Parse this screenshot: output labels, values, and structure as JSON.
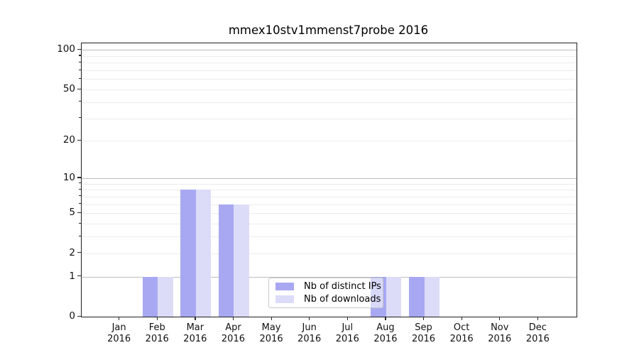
{
  "title": "mmex10stv1mmenst7probe 2016",
  "colors": {
    "distinct_ips": "#a8a8f2",
    "downloads": "#dcdcf9",
    "major_grid": "#bdbdbd",
    "minor_grid": "#ececec",
    "spine": "#1f1f1f"
  },
  "chart_data": {
    "type": "bar",
    "title": "mmex10stv1mmenst7probe 2016",
    "year": "2016",
    "months": [
      "Jan",
      "Feb",
      "Mar",
      "Apr",
      "May",
      "Jun",
      "Jul",
      "Aug",
      "Sep",
      "Oct",
      "Nov",
      "Dec"
    ],
    "series": [
      {
        "name": "Nb of distinct IPs",
        "key": "distinct-ips",
        "color": "#a8a8f2",
        "values": [
          0,
          1,
          8,
          6,
          0,
          0,
          0,
          1,
          1,
          0,
          0,
          0
        ]
      },
      {
        "name": "Nb of downloads",
        "key": "downloads",
        "color": "#dcdcf9",
        "values": [
          0,
          1,
          8,
          6,
          0,
          0,
          0,
          1,
          1,
          0,
          0,
          0
        ]
      }
    ],
    "xlabel": "",
    "ylabel": "",
    "y_scale": "log1p",
    "ylim": [
      0,
      112
    ],
    "y_tick_labels": [
      0,
      1,
      2,
      5,
      10,
      20,
      50,
      100
    ],
    "y_major_gridlines": [
      1,
      10,
      100
    ],
    "y_minor_gridlines": [
      2,
      3,
      4,
      5,
      6,
      7,
      8,
      9,
      20,
      30,
      40,
      50,
      60,
      70,
      80,
      90
    ],
    "grid": "horizontal",
    "legend_position": "lower center, overlapping Aug bars"
  }
}
